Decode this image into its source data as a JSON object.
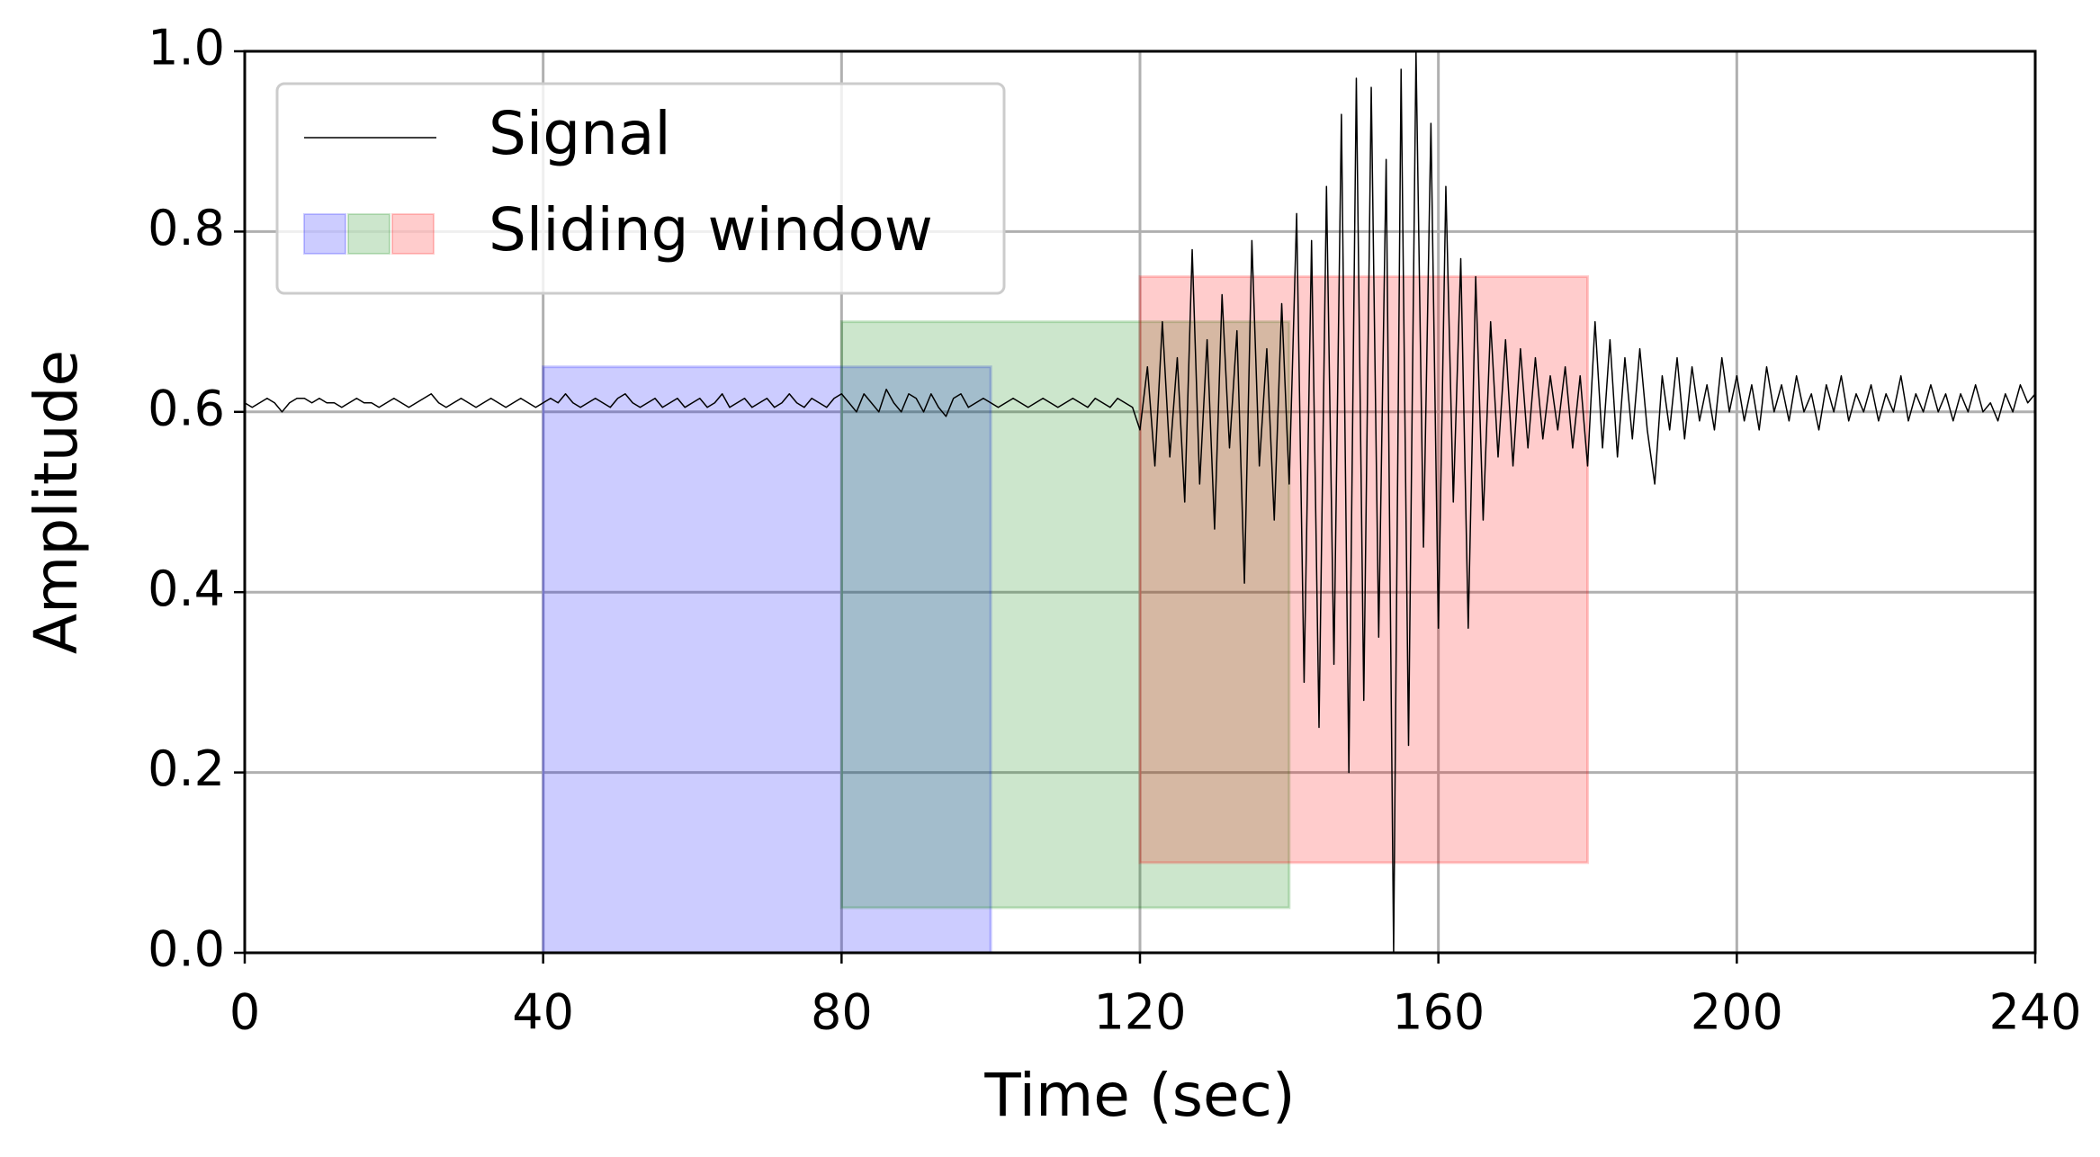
{
  "chart_data": {
    "type": "line",
    "xlabel": "Time (sec)",
    "ylabel": "Amplitude",
    "xlim": [
      0,
      240
    ],
    "xticks": [
      0,
      40,
      80,
      120,
      160,
      200,
      240
    ],
    "ylim": [
      0,
      1
    ],
    "yticks": [
      {
        "value": 0,
        "label": "0.0"
      },
      0.2,
      0.4,
      0.6,
      0.8,
      {
        "value": 1,
        "label": "1.0"
      }
    ],
    "grid": true,
    "legend": "upper left",
    "series": [
      {
        "name": "Signal",
        "color": "#000000",
        "x": [
          0,
          1,
          2,
          3,
          4,
          5,
          6,
          7,
          8,
          9,
          10,
          11,
          12,
          13,
          14,
          15,
          16,
          17,
          18,
          19,
          20,
          21,
          22,
          23,
          24,
          25,
          26,
          27,
          28,
          29,
          30,
          31,
          32,
          33,
          34,
          35,
          36,
          37,
          38,
          39,
          40,
          41,
          42,
          43,
          44,
          45,
          46,
          47,
          48,
          49,
          50,
          51,
          52,
          53,
          54,
          55,
          56,
          57,
          58,
          59,
          60,
          61,
          62,
          63,
          64,
          65,
          66,
          67,
          68,
          69,
          70,
          71,
          72,
          73,
          74,
          75,
          76,
          77,
          78,
          79,
          80,
          81,
          82,
          83,
          84,
          85,
          86,
          87,
          88,
          89,
          90,
          91,
          92,
          93,
          94,
          95,
          96,
          97,
          98,
          99,
          100,
          101,
          102,
          103,
          104,
          105,
          106,
          107,
          108,
          109,
          110,
          111,
          112,
          113,
          114,
          115,
          116,
          117,
          118,
          119,
          120,
          121,
          122,
          123,
          124,
          125,
          126,
          127,
          128,
          129,
          130,
          131,
          132,
          133,
          134,
          135,
          136,
          137,
          138,
          139,
          140,
          141,
          142,
          143,
          144,
          145,
          146,
          147,
          148,
          149,
          150,
          151,
          152,
          153,
          154,
          155,
          156,
          157,
          158,
          159,
          160,
          161,
          162,
          163,
          164,
          165,
          166,
          167,
          168,
          169,
          170,
          171,
          172,
          173,
          174,
          175,
          176,
          177,
          178,
          179,
          180,
          181,
          182,
          183,
          184,
          185,
          186,
          187,
          188,
          189,
          190,
          191,
          192,
          193,
          194,
          195,
          196,
          197,
          198,
          199,
          200,
          201,
          202,
          203,
          204,
          205,
          206,
          207,
          208,
          209,
          210,
          211,
          212,
          213,
          214,
          215,
          216,
          217,
          218,
          219,
          220,
          221,
          222,
          223,
          224,
          225,
          226,
          227,
          228,
          229,
          230,
          231,
          232,
          233,
          234,
          235,
          236,
          237,
          238,
          239,
          240
        ],
        "values": [
          0.61,
          0.605,
          0.61,
          0.615,
          0.61,
          0.6,
          0.61,
          0.615,
          0.615,
          0.61,
          0.615,
          0.61,
          0.61,
          0.605,
          0.61,
          0.615,
          0.61,
          0.61,
          0.605,
          0.61,
          0.615,
          0.61,
          0.605,
          0.61,
          0.615,
          0.62,
          0.61,
          0.605,
          0.61,
          0.615,
          0.61,
          0.605,
          0.61,
          0.615,
          0.61,
          0.605,
          0.61,
          0.615,
          0.61,
          0.605,
          0.61,
          0.615,
          0.61,
          0.62,
          0.61,
          0.605,
          0.61,
          0.615,
          0.61,
          0.605,
          0.615,
          0.62,
          0.61,
          0.605,
          0.61,
          0.615,
          0.605,
          0.61,
          0.615,
          0.605,
          0.61,
          0.615,
          0.605,
          0.61,
          0.62,
          0.605,
          0.61,
          0.615,
          0.605,
          0.61,
          0.615,
          0.605,
          0.61,
          0.62,
          0.61,
          0.605,
          0.615,
          0.61,
          0.605,
          0.615,
          0.62,
          0.61,
          0.6,
          0.62,
          0.61,
          0.6,
          0.625,
          0.61,
          0.6,
          0.62,
          0.615,
          0.6,
          0.62,
          0.605,
          0.595,
          0.615,
          0.62,
          0.605,
          0.61,
          0.615,
          0.61,
          0.605,
          0.61,
          0.615,
          0.61,
          0.605,
          0.61,
          0.615,
          0.61,
          0.605,
          0.61,
          0.615,
          0.61,
          0.605,
          0.615,
          0.61,
          0.605,
          0.615,
          0.61,
          0.605,
          0.58,
          0.65,
          0.54,
          0.7,
          0.55,
          0.66,
          0.5,
          0.78,
          0.52,
          0.68,
          0.47,
          0.73,
          0.56,
          0.69,
          0.41,
          0.79,
          0.54,
          0.67,
          0.48,
          0.72,
          0.52,
          0.82,
          0.3,
          0.79,
          0.25,
          0.85,
          0.32,
          0.93,
          0.2,
          0.97,
          0.28,
          0.96,
          0.35,
          0.88,
          0.0,
          0.98,
          0.23,
          1.0,
          0.45,
          0.92,
          0.36,
          0.85,
          0.5,
          0.77,
          0.36,
          0.75,
          0.48,
          0.7,
          0.55,
          0.68,
          0.54,
          0.67,
          0.56,
          0.66,
          0.57,
          0.64,
          0.58,
          0.65,
          0.56,
          0.64,
          0.54,
          0.7,
          0.56,
          0.68,
          0.55,
          0.66,
          0.57,
          0.67,
          0.58,
          0.52,
          0.64,
          0.58,
          0.66,
          0.57,
          0.65,
          0.59,
          0.63,
          0.58,
          0.66,
          0.6,
          0.64,
          0.59,
          0.63,
          0.58,
          0.65,
          0.6,
          0.63,
          0.59,
          0.64,
          0.6,
          0.62,
          0.58,
          0.63,
          0.6,
          0.64,
          0.59,
          0.62,
          0.6,
          0.63,
          0.59,
          0.62,
          0.6,
          0.64,
          0.59,
          0.62,
          0.6,
          0.63,
          0.6,
          0.62,
          0.59,
          0.62,
          0.6,
          0.63,
          0.6,
          0.61,
          0.59,
          0.62,
          0.6,
          0.63,
          0.61,
          0.62
        ]
      }
    ],
    "windows": {
      "name": "Sliding window",
      "items": [
        {
          "color": "#0000ff",
          "x0": 40,
          "x1": 100,
          "y0": 0,
          "y1": 0.65
        },
        {
          "color": "#008000",
          "x0": 80,
          "x1": 140,
          "y0": 0.05,
          "y1": 0.7
        },
        {
          "color": "#ff0000",
          "x0": 120,
          "x1": 180,
          "y0": 0.1,
          "y1": 0.75
        }
      ]
    }
  }
}
